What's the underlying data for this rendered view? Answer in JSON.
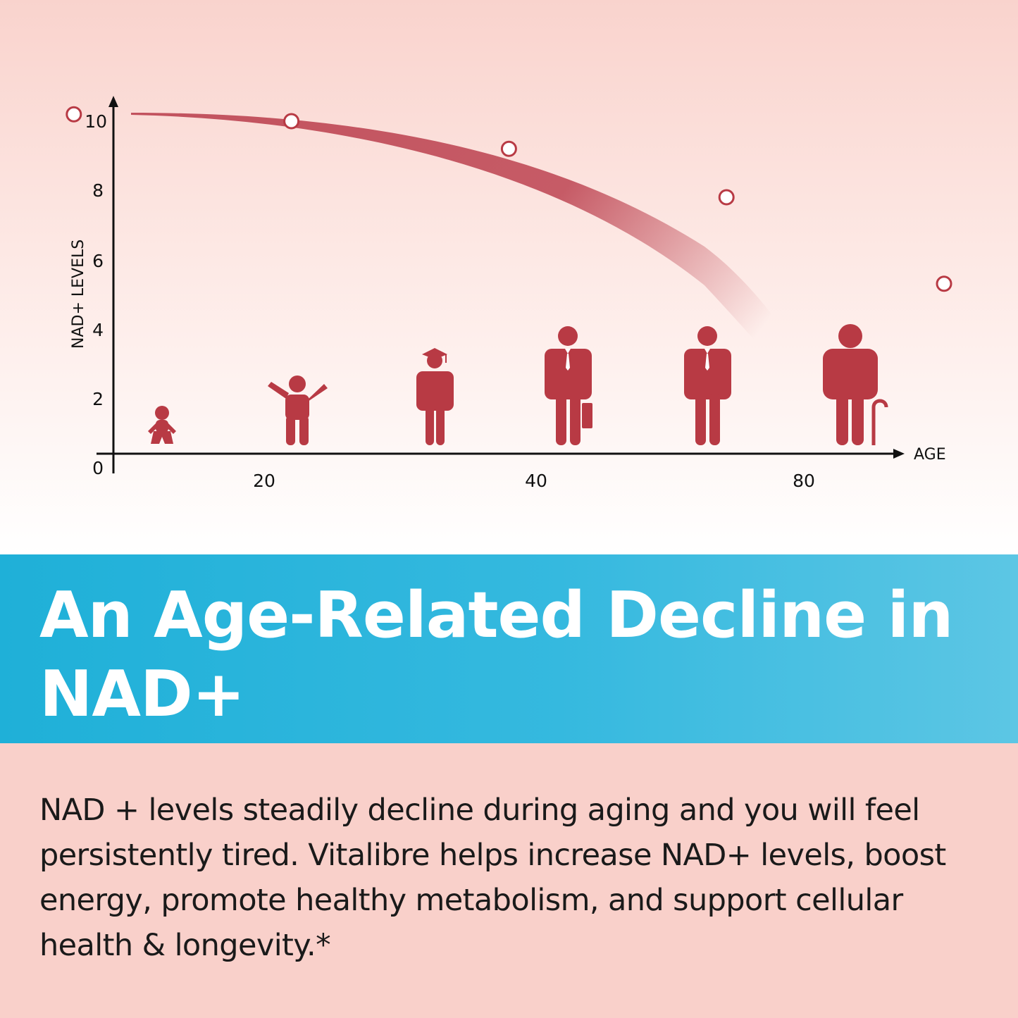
{
  "headline": "An Age-Related Decline in NAD+",
  "description": "NAD + levels steadily decline during aging and you will feel persistently tired. Vitalibre helps increase NAD+ levels, boost energy, promote healthy metabolism, and support cellular health & longevity.*",
  "colors": {
    "curve": "#c2525e",
    "figure": "#b83a44",
    "banner": "#29b4db",
    "background_bottom": "#f9d0ca"
  },
  "chart_data": {
    "type": "line",
    "xlabel": "AGE",
    "ylabel": "NAD+ LEVELS",
    "x_ticks": [
      "20",
      "40",
      "80"
    ],
    "y_ticks": [
      "0",
      "2",
      "4",
      "6",
      "8",
      "10"
    ],
    "ylim": [
      0,
      10
    ],
    "series": [
      {
        "points": [
          [
            6,
            10.2
          ],
          [
            22,
            10.0
          ],
          [
            38,
            9.2
          ],
          [
            54,
            7.8
          ],
          [
            70,
            5.3
          ]
        ]
      }
    ],
    "icons": [
      "baby-icon",
      "child-icon",
      "graduate-icon",
      "businessman-icon",
      "adult-man-icon",
      "elderly-man-icon"
    ]
  }
}
